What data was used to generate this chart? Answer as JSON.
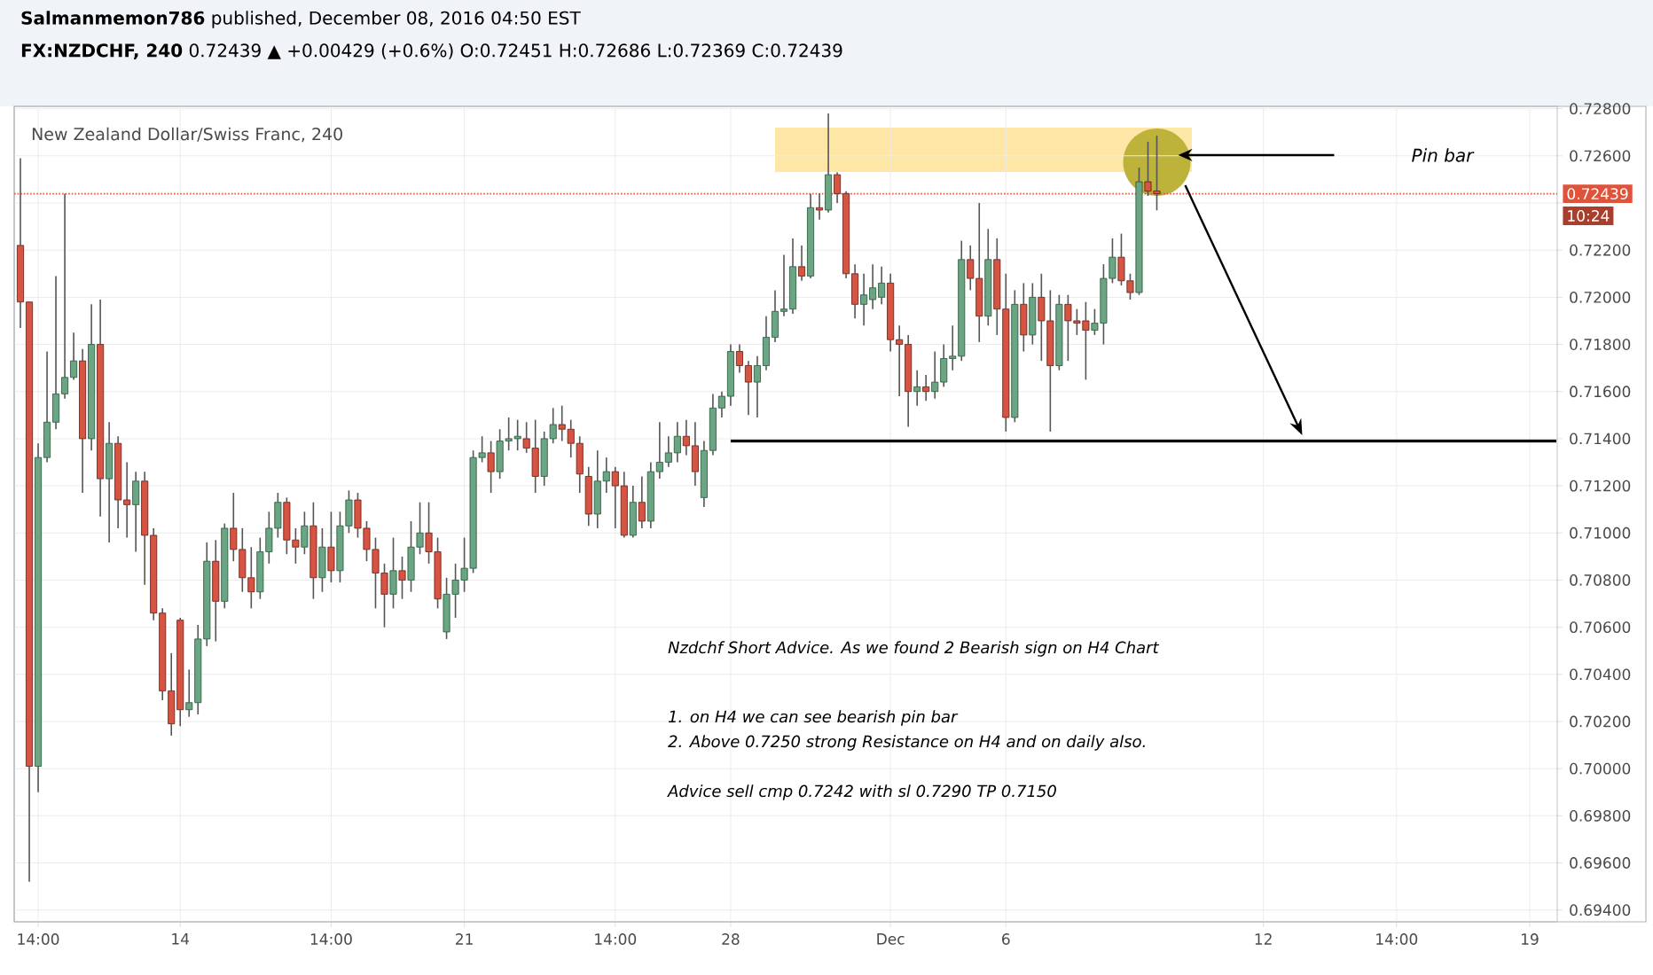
{
  "chart_data": {
    "type": "candlestick",
    "title": "New Zealand Dollar/Swiss Franc, 240",
    "subtitle": "**FX:NZDCHF, 240** 0.72439 ▲ +0.00429 (+0.6%) O:0.72451 H:0.72686 L:0.72369 C:0.72439",
    "annotations": [
      "**Salmanmemon786** published, December 08, 2016 04:50 EST",
      "Pin bar",
      "Nzdchf Short Advice. As we found 2 Bearish sign on H4 Chart",
      "1. on H4 we can see bearish pin bar",
      "2. Above 0.7250 strong Resistance on H4 and on daily also.",
      "Advice sell cmp 0.7242 with sl 0.7290 TP 0.7150",
      "10:24"
    ],
    "categories": [
      null,
      null,
      "14:00",
      null,
      null,
      null,
      null,
      null,
      null,
      null,
      null,
      null,
      null,
      null,
      null,
      null,
      null,
      null,
      "14",
      null,
      null,
      null,
      null,
      null,
      null,
      null,
      null,
      null,
      null,
      null,
      null,
      null,
      null,
      null,
      null,
      "14:00",
      null,
      null,
      null,
      null,
      null,
      null,
      null,
      null,
      null,
      null,
      null,
      null,
      null,
      null,
      "21",
      null,
      null,
      null,
      null,
      null,
      null,
      null,
      null,
      null,
      null,
      null,
      null,
      null,
      null,
      null,
      null,
      "14:00",
      null,
      null,
      null,
      null,
      null,
      null,
      null,
      null,
      null,
      null,
      null,
      null,
      "28",
      null,
      null,
      null,
      null,
      null,
      null,
      null,
      null,
      null,
      null,
      null,
      null,
      null,
      null,
      null,
      null,
      null,
      "Dec",
      null,
      null,
      null,
      null,
      null,
      null,
      null,
      null,
      null,
      null,
      null,
      null,
      "6",
      null,
      null,
      null,
      null,
      null,
      null,
      null,
      null,
      null,
      null,
      null,
      null,
      null,
      null,
      null,
      null,
      null,
      null,
      null,
      null,
      null,
      null,
      null,
      null,
      null,
      null,
      null,
      null,
      "12",
      null,
      null,
      null,
      null,
      null,
      null,
      null,
      null,
      null,
      null,
      null,
      null,
      null,
      null,
      "14:00",
      null,
      null,
      null,
      null,
      null,
      null,
      null,
      null,
      null,
      null,
      null,
      null,
      null,
      null,
      "19",
      null,
      null,
      null
    ],
    "ohlc": [
      [
        0.7222,
        0.7259,
        0.7187,
        0.7198
      ],
      [
        0.7198,
        0.7198,
        0.6952,
        0.7001
      ],
      [
        0.7001,
        0.7138,
        0.699,
        0.7132
      ],
      [
        0.7132,
        0.7177,
        0.713,
        0.7147
      ],
      [
        0.7147,
        0.7209,
        0.7144,
        0.7159
      ],
      [
        0.7159,
        0.7244,
        0.7157,
        0.7166
      ],
      [
        0.7166,
        0.7185,
        0.7165,
        0.7173
      ],
      [
        0.7173,
        0.7178,
        0.7117,
        0.714
      ],
      [
        0.714,
        0.7197,
        0.7135,
        0.718
      ],
      [
        0.718,
        0.7199,
        0.7107,
        0.7123
      ],
      [
        0.7123,
        0.7147,
        0.7096,
        0.7138
      ],
      [
        0.7138,
        0.7141,
        0.7102,
        0.7114
      ],
      [
        0.7114,
        0.713,
        0.7098,
        0.7112
      ],
      [
        0.7112,
        0.7126,
        0.7092,
        0.7122
      ],
      [
        0.7122,
        0.7126,
        0.7078,
        0.7099
      ],
      [
        0.7099,
        0.7102,
        0.7063,
        0.7066
      ],
      [
        0.7066,
        0.7068,
        0.7029,
        0.7033
      ],
      [
        0.7033,
        0.7049,
        0.7014,
        0.7019
      ],
      [
        0.7063,
        0.7064,
        0.7018,
        0.7025
      ],
      [
        0.7025,
        0.7042,
        0.7022,
        0.7028
      ],
      [
        0.7028,
        0.7061,
        0.7023,
        0.7055
      ],
      [
        0.7055,
        0.7096,
        0.7052,
        0.7088
      ],
      [
        0.7088,
        0.7097,
        0.7054,
        0.7071
      ],
      [
        0.7071,
        0.7104,
        0.7068,
        0.7102
      ],
      [
        0.7102,
        0.7117,
        0.7088,
        0.7093
      ],
      [
        0.7093,
        0.7102,
        0.7075,
        0.7081
      ],
      [
        0.7081,
        0.7094,
        0.7068,
        0.7075
      ],
      [
        0.7075,
        0.7098,
        0.7072,
        0.7092
      ],
      [
        0.7092,
        0.7109,
        0.7087,
        0.7102
      ],
      [
        0.7102,
        0.7117,
        0.7098,
        0.7113
      ],
      [
        0.7113,
        0.7115,
        0.7091,
        0.7097
      ],
      [
        0.7097,
        0.7102,
        0.7087,
        0.7094
      ],
      [
        0.7094,
        0.7109,
        0.7091,
        0.7103
      ],
      [
        0.7103,
        0.7113,
        0.7072,
        0.7081
      ],
      [
        0.7081,
        0.7102,
        0.7075,
        0.7094
      ],
      [
        0.7094,
        0.7109,
        0.7079,
        0.7084
      ],
      [
        0.7084,
        0.7109,
        0.7079,
        0.7103
      ],
      [
        0.7103,
        0.7118,
        0.71,
        0.7114
      ],
      [
        0.7114,
        0.7117,
        0.7098,
        0.7102
      ],
      [
        0.7102,
        0.7105,
        0.7088,
        0.7093
      ],
      [
        0.7093,
        0.7098,
        0.7068,
        0.7083
      ],
      [
        0.7083,
        0.7087,
        0.706,
        0.7074
      ],
      [
        0.7074,
        0.7098,
        0.7068,
        0.7084
      ],
      [
        0.7084,
        0.709,
        0.7072,
        0.708
      ],
      [
        0.708,
        0.7105,
        0.7075,
        0.7094
      ],
      [
        0.7094,
        0.7113,
        0.7091,
        0.71
      ],
      [
        0.71,
        0.7113,
        0.7087,
        0.7092
      ],
      [
        0.7092,
        0.7098,
        0.7068,
        0.7072
      ],
      [
        0.7058,
        0.7081,
        0.7055,
        0.7074
      ],
      [
        0.7074,
        0.7087,
        0.7064,
        0.708
      ],
      [
        0.708,
        0.7098,
        0.7075,
        0.7085
      ],
      [
        0.7085,
        0.7135,
        0.7083,
        0.7132
      ],
      [
        0.7132,
        0.7141,
        0.713,
        0.7134
      ],
      [
        0.7134,
        0.7139,
        0.7117,
        0.7126
      ],
      [
        0.7126,
        0.7144,
        0.7123,
        0.7139
      ],
      [
        0.7139,
        0.7149,
        0.7135,
        0.714
      ],
      [
        0.714,
        0.7148,
        0.7135,
        0.7141
      ],
      [
        0.714,
        0.7147,
        0.7134,
        0.7136
      ],
      [
        0.7136,
        0.7148,
        0.7117,
        0.7124
      ],
      [
        0.7124,
        0.7143,
        0.712,
        0.714
      ],
      [
        0.714,
        0.7153,
        0.7138,
        0.7146
      ],
      [
        0.7146,
        0.7154,
        0.7139,
        0.7144
      ],
      [
        0.7144,
        0.7148,
        0.7132,
        0.7138
      ],
      [
        0.7138,
        0.7141,
        0.7117,
        0.7125
      ],
      [
        0.7124,
        0.7128,
        0.7103,
        0.7108
      ],
      [
        0.7108,
        0.7135,
        0.7102,
        0.7122
      ],
      [
        0.7122,
        0.7132,
        0.7117,
        0.7126
      ],
      [
        0.7126,
        0.7128,
        0.7102,
        0.712
      ],
      [
        0.712,
        0.7126,
        0.7098,
        0.7099
      ],
      [
        0.7099,
        0.712,
        0.7098,
        0.7113
      ],
      [
        0.7113,
        0.7124,
        0.7102,
        0.7105
      ],
      [
        0.7105,
        0.713,
        0.7102,
        0.7126
      ],
      [
        0.7126,
        0.7147,
        0.7123,
        0.713
      ],
      [
        0.713,
        0.7141,
        0.7128,
        0.7134
      ],
      [
        0.7134,
        0.7147,
        0.713,
        0.7141
      ],
      [
        0.7141,
        0.7148,
        0.7133,
        0.7137
      ],
      [
        0.7137,
        0.7147,
        0.712,
        0.7126
      ],
      [
        0.7115,
        0.7139,
        0.7111,
        0.7135
      ],
      [
        0.7135,
        0.7159,
        0.7133,
        0.7153
      ],
      [
        0.7153,
        0.716,
        0.7149,
        0.7158
      ],
      [
        0.7158,
        0.718,
        0.7154,
        0.7177
      ],
      [
        0.7177,
        0.718,
        0.7168,
        0.7171
      ],
      [
        0.7171,
        0.7173,
        0.715,
        0.7164
      ],
      [
        0.7164,
        0.7175,
        0.7149,
        0.7171
      ],
      [
        0.7171,
        0.7192,
        0.7169,
        0.7183
      ],
      [
        0.7183,
        0.7203,
        0.7181,
        0.7194
      ],
      [
        0.7194,
        0.7218,
        0.7192,
        0.7195
      ],
      [
        0.7195,
        0.7225,
        0.7193,
        0.7213
      ],
      [
        0.7213,
        0.7222,
        0.7207,
        0.7209
      ],
      [
        0.7209,
        0.7244,
        0.7208,
        0.7238
      ],
      [
        0.7238,
        0.7244,
        0.7233,
        0.7237
      ],
      [
        0.7237,
        0.7278,
        0.7236,
        0.7252
      ],
      [
        0.7252,
        0.7253,
        0.724,
        0.7244
      ],
      [
        0.7244,
        0.7245,
        0.7208,
        0.721
      ],
      [
        0.721,
        0.7214,
        0.7191,
        0.7197
      ],
      [
        0.7197,
        0.721,
        0.7188,
        0.7201
      ],
      [
        0.7199,
        0.7214,
        0.7195,
        0.7204
      ],
      [
        0.72,
        0.7213,
        0.7197,
        0.7206
      ],
      [
        0.7206,
        0.721,
        0.7177,
        0.7182
      ],
      [
        0.7182,
        0.7188,
        0.7158,
        0.718
      ],
      [
        0.718,
        0.7184,
        0.7145,
        0.716
      ],
      [
        0.716,
        0.7169,
        0.7154,
        0.7162
      ],
      [
        0.7162,
        0.7167,
        0.7156,
        0.716
      ],
      [
        0.716,
        0.7177,
        0.7157,
        0.7164
      ],
      [
        0.7164,
        0.718,
        0.7162,
        0.7174
      ],
      [
        0.7174,
        0.7188,
        0.7169,
        0.7175
      ],
      [
        0.7175,
        0.7224,
        0.7173,
        0.7216
      ],
      [
        0.7216,
        0.7222,
        0.7203,
        0.7208
      ],
      [
        0.7208,
        0.724,
        0.7181,
        0.7192
      ],
      [
        0.7192,
        0.7229,
        0.7188,
        0.7216
      ],
      [
        0.7216,
        0.7225,
        0.7184,
        0.7195
      ],
      [
        0.7195,
        0.721,
        0.7143,
        0.7149
      ],
      [
        0.7149,
        0.7203,
        0.7147,
        0.7197
      ],
      [
        0.7197,
        0.7206,
        0.7177,
        0.7184
      ],
      [
        0.7184,
        0.7206,
        0.718,
        0.72
      ],
      [
        0.72,
        0.721,
        0.7173,
        0.719
      ],
      [
        0.719,
        0.7203,
        0.7143,
        0.7171
      ],
      [
        0.7171,
        0.7201,
        0.7169,
        0.7197
      ],
      [
        0.7197,
        0.7201,
        0.7173,
        0.719
      ],
      [
        0.719,
        0.7195,
        0.7184,
        0.7189
      ],
      [
        0.719,
        0.7198,
        0.7165,
        0.7186
      ],
      [
        0.7186,
        0.7195,
        0.7184,
        0.7189
      ],
      [
        0.7189,
        0.7214,
        0.718,
        0.7208
      ],
      [
        0.7208,
        0.7225,
        0.7206,
        0.7217
      ],
      [
        0.7217,
        0.7227,
        0.7205,
        0.7207
      ],
      [
        0.7207,
        0.721,
        0.7199,
        0.7202
      ],
      [
        0.7202,
        0.7255,
        0.7201,
        0.7249
      ],
      [
        0.7249,
        0.7266,
        0.7243,
        0.7245
      ],
      [
        0.72451,
        0.72686,
        0.72369,
        0.72439
      ],
      null,
      null,
      null,
      null,
      null,
      null,
      null,
      null,
      null,
      null,
      null,
      null,
      null,
      null,
      null,
      null,
      null,
      null,
      null,
      null,
      null,
      null,
      null,
      null,
      null,
      null,
      null,
      null,
      null,
      null,
      null,
      null,
      null,
      null,
      null,
      null,
      null,
      null,
      null,
      null,
      null,
      null,
      null,
      null,
      null
    ],
    "ylim": [
      0.6935,
      0.7281
    ],
    "yticks": [
      {
        "value": 0.694,
        "label": "0.69400"
      },
      {
        "value": 0.696,
        "label": "0.69600"
      },
      {
        "value": 0.698,
        "label": "0.69800"
      },
      {
        "value": 0.7,
        "label": "0.70000"
      },
      {
        "value": 0.702,
        "label": "0.70200"
      },
      {
        "value": 0.704,
        "label": "0.70400"
      },
      {
        "value": 0.706,
        "label": "0.70600"
      },
      {
        "value": 0.708,
        "label": "0.70800"
      },
      {
        "value": 0.71,
        "label": "0.71000"
      },
      {
        "value": 0.712,
        "label": "0.71200"
      },
      {
        "value": 0.714,
        "label": "0.71400"
      },
      {
        "value": 0.716,
        "label": "0.71600"
      },
      {
        "value": 0.718,
        "label": "0.71800"
      },
      {
        "value": 0.72,
        "label": "0.72000"
      },
      {
        "value": 0.722,
        "label": "0.72200"
      },
      {
        "value": 0.724,
        "label": null
      },
      {
        "value": 0.726,
        "label": "0.72600"
      },
      {
        "value": 0.728,
        "label": "0.72800"
      }
    ],
    "grid": true,
    "ref_lines": [
      {
        "axis": "y",
        "value": 0.72439,
        "label": "0.72439",
        "color": "#e0533b",
        "line_style": "dotted"
      }
    ],
    "series": [
      {
        "type": "line",
        "color": "#000000",
        "values": [
          null,
          null,
          null,
          null,
          null,
          null,
          null,
          null,
          null,
          null,
          null,
          null,
          null,
          null,
          null,
          null,
          null,
          null,
          null,
          null,
          null,
          null,
          null,
          null,
          null,
          null,
          null,
          null,
          null,
          null,
          null,
          null,
          null,
          null,
          null,
          null,
          null,
          null,
          null,
          null,
          null,
          null,
          null,
          null,
          null,
          null,
          null,
          null,
          null,
          null,
          null,
          null,
          null,
          null,
          null,
          null,
          null,
          null,
          null,
          null,
          null,
          null,
          null,
          null,
          null,
          null,
          null,
          null,
          null,
          null,
          null,
          null,
          null,
          null,
          null,
          null,
          null,
          null,
          null,
          null,
          0.7139,
          0.7139,
          0.7139,
          0.7139,
          0.7139,
          0.7139,
          0.7139,
          0.7139,
          0.7139,
          0.7139,
          0.7139,
          0.7139,
          0.7139,
          0.7139,
          0.7139,
          0.7139,
          0.7139,
          0.7139,
          0.7139,
          0.7139,
          0.7139,
          0.7139,
          0.7139,
          0.7139,
          0.7139,
          0.7139,
          0.7139,
          0.7139,
          0.7139,
          0.7139,
          0.7139,
          0.7139,
          0.7139,
          0.7139,
          0.7139,
          0.7139,
          0.7139,
          0.7139,
          0.7139,
          0.7139,
          0.7139,
          0.7139,
          0.7139,
          0.7139,
          0.7139,
          0.7139,
          0.7139,
          0.7139,
          0.7139,
          0.7139,
          0.7139,
          0.7139,
          0.7139,
          0.7139,
          0.7139,
          0.7139,
          0.7139,
          0.7139,
          0.7139,
          0.7139,
          0.7139,
          0.7139,
          0.7139,
          0.7139,
          0.7139,
          0.7139,
          0.7139,
          0.7139,
          0.7139,
          0.7139,
          0.7139,
          0.7139,
          0.7139,
          0.7139,
          0.7139,
          0.7139,
          0.7139,
          0.7139,
          0.7139,
          0.7139,
          0.7139,
          0.7139,
          0.7139,
          0.7139,
          0.7139,
          0.7139,
          0.7139,
          0.7139,
          0.7139,
          0.7139,
          0.7139,
          0.7139,
          0.7139,
          0.7139
        ]
      }
    ]
  }
}
